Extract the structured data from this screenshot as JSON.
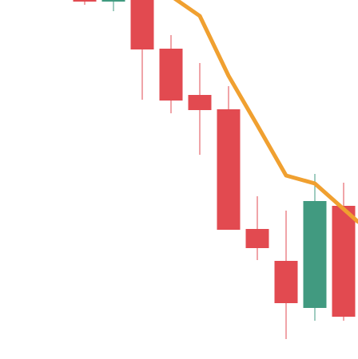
{
  "chart_data": {
    "type": "candlestick",
    "title": "",
    "xlabel": "",
    "ylabel": "",
    "ylim": [
      0,
      450
    ],
    "grid": false,
    "legend": "none",
    "colors": {
      "up": "#419a80",
      "down": "#e24a50",
      "moving_average": "#f0a030",
      "background": "#ffffff"
    },
    "candles": [
      {
        "open": 452,
        "high": 458,
        "low": 444,
        "close": 448,
        "direction": "down"
      },
      {
        "open": 448,
        "high": 456,
        "low": 436,
        "close": 452,
        "direction": "up"
      },
      {
        "open": 460,
        "high": 460,
        "low": 325,
        "close": 388,
        "direction": "down"
      },
      {
        "open": 389,
        "high": 406,
        "low": 308,
        "close": 324,
        "direction": "down"
      },
      {
        "open": 331,
        "high": 371,
        "low": 256,
        "close": 312,
        "direction": "down"
      },
      {
        "open": 313,
        "high": 342,
        "low": 162,
        "close": 162,
        "direction": "down"
      },
      {
        "open": 163,
        "high": 204,
        "low": 124,
        "close": 139,
        "direction": "down"
      },
      {
        "open": 123,
        "high": 186,
        "low": 25,
        "close": 70,
        "direction": "down"
      },
      {
        "open": 64,
        "high": 232,
        "low": 48,
        "close": 198,
        "direction": "up"
      },
      {
        "open": 192,
        "high": 221,
        "low": 48,
        "close": 53,
        "direction": "down"
      }
    ],
    "moving_average": {
      "values": [
        null,
        null,
        470,
        455,
        430,
        355,
        293,
        230,
        220,
        188
      ]
    }
  }
}
